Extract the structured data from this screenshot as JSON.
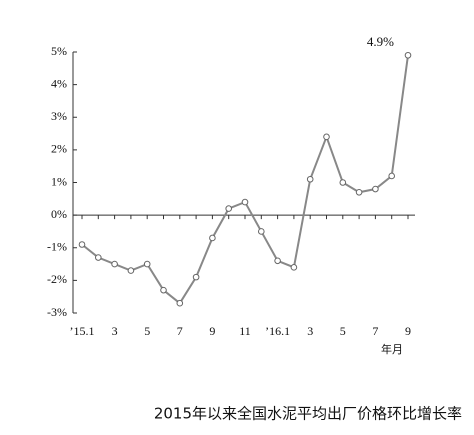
{
  "chart_data": {
    "type": "line",
    "title": "2015年以来全国水泥平均出厂价格环比增长率",
    "x_label": "年月",
    "categories": [
      "’15.1",
      null,
      "3",
      null,
      "5",
      null,
      "7",
      null,
      "9",
      null,
      "11",
      null,
      "’16.1",
      null,
      "3",
      null,
      "5",
      null,
      "7",
      null,
      "9"
    ],
    "series": [
      {
        "name": "环比增长率",
        "color": "#888888",
        "values": [
          -0.9,
          -1.3,
          -1.5,
          -1.7,
          -1.5,
          -2.3,
          -2.7,
          -1.9,
          -0.7,
          0.2,
          0.4,
          -0.5,
          -1.4,
          -1.6,
          1.1,
          2.4,
          1.0,
          0.7,
          0.8,
          1.2,
          4.9
        ],
        "value_labels": [
          null,
          null,
          null,
          null,
          null,
          null,
          null,
          null,
          null,
          null,
          null,
          null,
          null,
          null,
          null,
          null,
          null,
          null,
          null,
          null,
          "4.9%"
        ]
      }
    ],
    "ylim": [
      -3,
      5
    ],
    "yticks": [
      {
        "value": -3,
        "label": "-3%"
      },
      {
        "value": -2,
        "label": "-2%"
      },
      {
        "value": -1,
        "label": "-1%"
      },
      {
        "value": 0,
        "label": "0%"
      },
      {
        "value": 1,
        "label": "1%"
      },
      {
        "value": 2,
        "label": "2%"
      },
      {
        "value": 3,
        "label": "3%"
      },
      {
        "value": 4,
        "label": "4%"
      },
      {
        "value": 5,
        "label": "5%"
      }
    ],
    "grid": false
  }
}
